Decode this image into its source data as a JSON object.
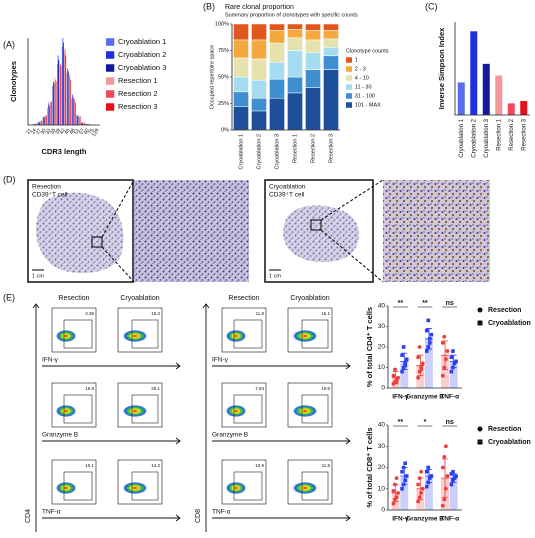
{
  "chart_data": [
    {
      "type": "bar",
      "ylabel": "Clonotypes",
      "xlabel": "CDR3 length",
      "categories": [
        "21",
        "24",
        "27",
        "30",
        "33",
        "36",
        "39",
        "42",
        "45",
        "48",
        "51",
        "57",
        "60",
        "75",
        "129"
      ],
      "ylim": [
        0,
        100
      ],
      "series": [
        {
          "name": "Cryoablation 1",
          "color": "#5b6cf2",
          "values": [
            0,
            1,
            3,
            8,
            20,
            45,
            70,
            90,
            60,
            30,
            12,
            3,
            1,
            0,
            0
          ]
        },
        {
          "name": "Cryoablation 2",
          "color": "#1e2fe0",
          "values": [
            0,
            1,
            4,
            10,
            25,
            50,
            80,
            100,
            65,
            35,
            10,
            3,
            1,
            0,
            0
          ]
        },
        {
          "name": "Cryoablation 3",
          "color": "#15169c",
          "values": [
            0,
            1,
            3,
            9,
            22,
            48,
            75,
            95,
            62,
            32,
            11,
            2,
            1,
            0,
            0
          ]
        },
        {
          "name": "Resection 1",
          "color": "#f29a9a",
          "values": [
            0,
            2,
            5,
            12,
            28,
            55,
            72,
            85,
            55,
            28,
            10,
            3,
            1,
            1,
            0
          ]
        },
        {
          "name": "Resection 2",
          "color": "#f04a5c",
          "values": [
            0,
            1,
            4,
            10,
            26,
            52,
            70,
            88,
            58,
            30,
            9,
            2,
            1,
            0,
            0
          ]
        },
        {
          "name": "Resection 3",
          "color": "#e6111b",
          "values": [
            0,
            2,
            5,
            11,
            27,
            50,
            68,
            80,
            52,
            26,
            10,
            3,
            1,
            0,
            0
          ]
        }
      ]
    },
    {
      "type": "stacked_bar",
      "title": "Rare clonal proportion",
      "subtitle": "Summary proportion of clonotypes with specific counts",
      "ylabel": "Occupied repertoire space",
      "legend_title": "Clonotype counts",
      "categories": [
        "Cryoablation 1",
        "Cryoablation 2",
        "Cryoablation 3",
        "Resection 1",
        "Resection 2",
        "Resection 3"
      ],
      "ylim": [
        0,
        100
      ],
      "yticks": [
        {
          "value": 0,
          "label": "0%"
        },
        {
          "value": 25,
          "label": "25%"
        },
        {
          "value": 50,
          "label": "50%"
        },
        {
          "value": 75,
          "label": "75%"
        },
        {
          "value": 100,
          "label": "100%"
        }
      ],
      "series": [
        {
          "name": "101 - MAX",
          "color": "#1d4f9b",
          "values": [
            22,
            18,
            30,
            35,
            40,
            57
          ]
        },
        {
          "name": "31 - 100",
          "color": "#3f8fd0",
          "values": [
            14,
            12,
            18,
            15,
            17,
            13
          ]
        },
        {
          "name": "11 - 30",
          "color": "#a6dcef",
          "values": [
            14,
            17,
            16,
            25,
            16,
            8
          ]
        },
        {
          "name": "4 - 10",
          "color": "#e6e2ad",
          "values": [
            18,
            20,
            18,
            12,
            12,
            8
          ]
        },
        {
          "name": "2 - 3",
          "color": "#f4a93f",
          "values": [
            17,
            18,
            12,
            8,
            9,
            8
          ]
        },
        {
          "name": "1",
          "color": "#e2581c",
          "values": [
            15,
            15,
            6,
            5,
            6,
            6
          ]
        }
      ]
    },
    {
      "type": "bar",
      "ylabel": "Inverse Simpson Index",
      "categories": [
        "Cryoablation 1",
        "Cryoablation 2",
        "Cryoablation 3",
        "Resection 1",
        "Resection 2",
        "Resection 3"
      ],
      "ylim": [
        0,
        40
      ],
      "values": [
        14,
        36,
        22,
        17,
        5,
        6
      ],
      "colors": [
        "#5b6cf2",
        "#1e2fe0",
        "#15169c",
        "#f29a9a",
        "#f04a5c",
        "#e6111b"
      ]
    },
    {
      "type": "bar",
      "ylabel": "% of total CD4⁺ T cells",
      "categories": [
        "IFN-γ",
        "Granzyme B",
        "TNF-α"
      ],
      "ylim": [
        0,
        40
      ],
      "yticks": [
        0,
        10,
        20,
        30,
        40
      ],
      "sig": [
        "**",
        "**",
        "ns"
      ],
      "series": [
        {
          "name": "Resection",
          "color": "#f03c3c",
          "marker": "circle",
          "values": [
            5,
            11,
            16
          ],
          "errors": [
            3,
            5,
            7
          ],
          "points": [
            [
              2,
              3,
              4,
              5,
              6,
              9,
              3
            ],
            [
              5,
              8,
              10,
              12,
              15,
              20,
              9
            ],
            [
              6,
              10,
              14,
              18,
              22,
              25
            ]
          ]
        },
        {
          "name": "Cryoablation",
          "color": "#2b3ef0",
          "marker": "square",
          "values": [
            13,
            24,
            13
          ],
          "errors": [
            4,
            5,
            3
          ],
          "points": [
            [
              8,
              10,
              12,
              14,
              16,
              20,
              11
            ],
            [
              18,
              20,
              24,
              26,
              28,
              33,
              22
            ],
            [
              8,
              10,
              12,
              13,
              15,
              18
            ]
          ]
        }
      ]
    },
    {
      "type": "bar",
      "ylabel": "% of total CD8⁺ T cells",
      "categories": [
        "IFN-γ",
        "Granzyme B",
        "TNF-α"
      ],
      "ylim": [
        0,
        40
      ],
      "yticks": [
        0,
        10,
        20,
        30,
        40
      ],
      "sig": [
        "**",
        "*",
        "ns"
      ],
      "series": [
        {
          "name": "Resection",
          "color": "#f03c3c",
          "marker": "circle",
          "values": [
            8,
            10,
            15
          ],
          "errors": [
            4,
            5,
            9
          ],
          "points": [
            [
              3,
              5,
              6,
              8,
              9,
              12,
              15
            ],
            [
              4,
              6,
              8,
              10,
              12,
              15,
              18
            ],
            [
              2,
              5,
              10,
              16,
              20,
              25,
              30
            ]
          ]
        },
        {
          "name": "Cryoablation",
          "color": "#2b3ef0",
          "marker": "square",
          "values": [
            16,
            16,
            15
          ],
          "errors": [
            4,
            3,
            2
          ],
          "points": [
            [
              10,
              12,
              14,
              16,
              18,
              20,
              22
            ],
            [
              11,
              13,
              15,
              16,
              18,
              20
            ],
            [
              12,
              14,
              15,
              16,
              17,
              18
            ]
          ]
        }
      ]
    }
  ],
  "panel_labels": [
    "(A)",
    "(B)",
    "(C)",
    "(D)",
    "(E)"
  ],
  "histology": [
    {
      "title": "Resection",
      "subtitle": "CD39⁺T cell",
      "scale": "1 cm"
    },
    {
      "title": "Cryoablation",
      "subtitle": "CD39⁺T cell",
      "scale": "1 cm"
    }
  ],
  "flow": [
    {
      "columns": [
        "Resection",
        "Cryoablation"
      ],
      "axis": "CD4",
      "rows": [
        {
          "marker": "IFN-γ",
          "values": [
            "3.36",
            "15.3"
          ]
        },
        {
          "marker": "Granzyme B",
          "values": [
            "15.8",
            "25.1"
          ]
        },
        {
          "marker": "TNF-α",
          "values": [
            "10.1",
            "14.2"
          ]
        }
      ]
    },
    {
      "columns": [
        "Resection",
        "Cryoablation"
      ],
      "axis": "CD8",
      "rows": [
        {
          "marker": "IFN-γ",
          "values": [
            "11.8",
            "15.1"
          ]
        },
        {
          "marker": "Granzyme B",
          "values": [
            "7.63",
            "19.6"
          ]
        },
        {
          "marker": "TNF-α",
          "values": [
            "10.9",
            "11.8"
          ]
        }
      ]
    }
  ]
}
